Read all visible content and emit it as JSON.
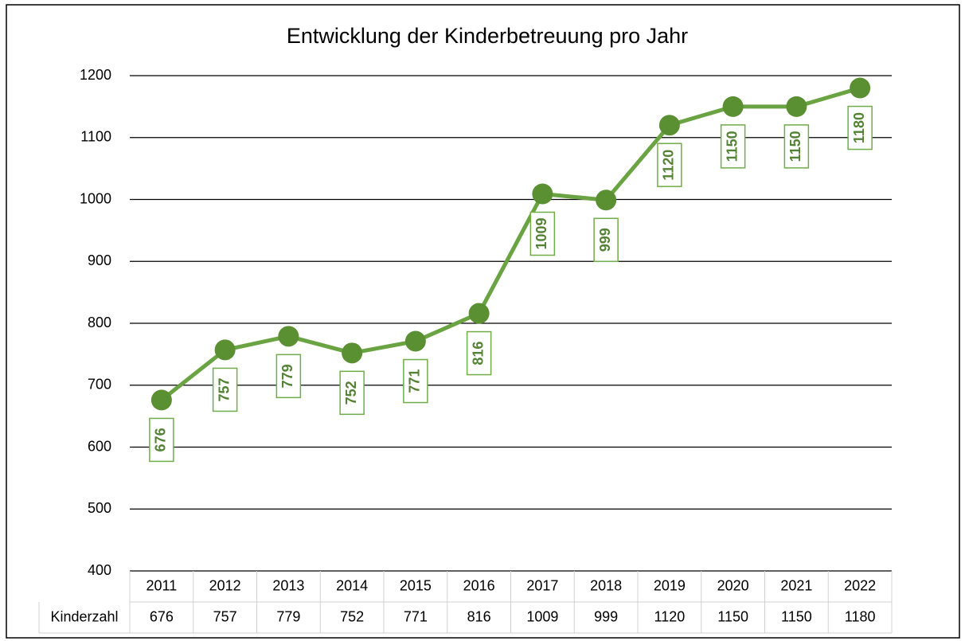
{
  "chart_data": {
    "type": "line",
    "title": "Entwicklung der Kinderbetreuung pro Jahr",
    "categories": [
      "2011",
      "2012",
      "2013",
      "2014",
      "2015",
      "2016",
      "2017",
      "2018",
      "2019",
      "2020",
      "2021",
      "2022"
    ],
    "series": [
      {
        "name": "Kinderzahl",
        "color": "#6aa342",
        "values": [
          676,
          757,
          779,
          752,
          771,
          816,
          1009,
          999,
          1120,
          1150,
          1150,
          1180
        ]
      }
    ],
    "ylim": [
      400,
      1200
    ],
    "yticks": [
      400,
      500,
      600,
      700,
      800,
      900,
      1000,
      1100,
      1200
    ],
    "grid": true
  }
}
